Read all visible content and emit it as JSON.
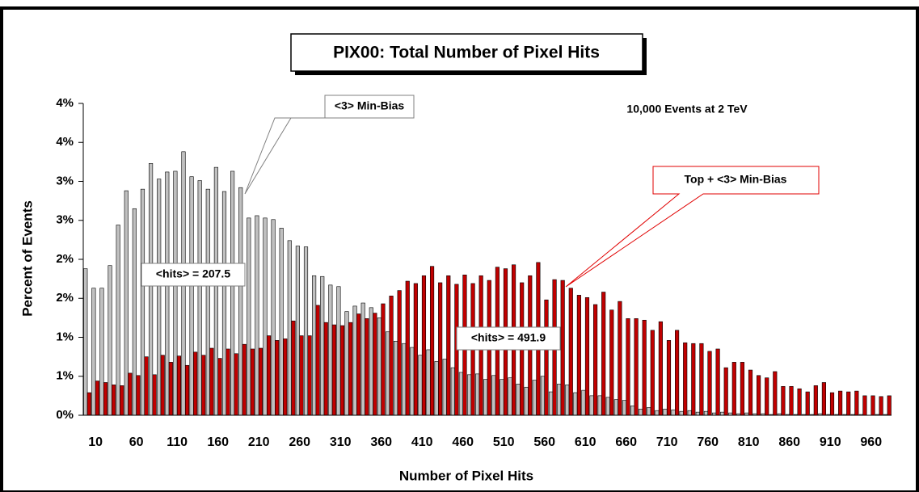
{
  "chart_data": {
    "type": "bar",
    "title": "PIX00: Total Number of Pixel Hits",
    "xlabel": "Number of Pixel Hits",
    "ylabel": "Percent of Events",
    "annotations": [
      "<3> Min-Bias",
      "10,000 Events at 2 TeV",
      "Top + <3> Min-Bias",
      "<hits> = 207.5",
      "<hits> = 491.9"
    ],
    "categories": [
      "10",
      null,
      null,
      null,
      null,
      "60",
      null,
      null,
      null,
      null,
      "110",
      null,
      null,
      null,
      null,
      "160",
      null,
      null,
      null,
      null,
      "210",
      null,
      null,
      null,
      null,
      "260",
      null,
      null,
      null,
      null,
      "310",
      null,
      null,
      null,
      null,
      "360",
      null,
      null,
      null,
      null,
      "410",
      null,
      null,
      null,
      null,
      "460",
      null,
      null,
      null,
      null,
      "510",
      null,
      null,
      null,
      null,
      "560",
      null,
      null,
      null,
      null,
      "610",
      null,
      null,
      null,
      null,
      "660",
      null,
      null,
      null,
      null,
      "710",
      null,
      null,
      null,
      null,
      "760",
      null,
      null,
      null,
      null,
      "810",
      null,
      null,
      null,
      null,
      "860",
      null,
      null,
      null,
      null,
      "910",
      null,
      null,
      null,
      null,
      "960",
      null,
      null,
      null
    ],
    "series": [
      {
        "color": "#c0c0c0",
        "values": [
          1.88,
          1.63,
          1.63,
          1.92,
          2.44,
          2.88,
          2.65,
          2.9,
          3.23,
          3.03,
          3.12,
          3.13,
          3.38,
          3.06,
          3.01,
          2.9,
          3.18,
          2.87,
          3.13,
          2.92,
          2.53,
          2.56,
          2.53,
          2.51,
          2.4,
          2.24,
          2.17,
          2.16,
          1.79,
          1.78,
          1.67,
          1.65,
          1.33,
          1.4,
          1.44,
          1.38,
          1.25,
          1.07,
          0.95,
          0.92,
          0.87,
          0.77,
          0.84,
          0.69,
          0.72,
          0.61,
          0.55,
          0.52,
          0.53,
          0.46,
          0.51,
          0.46,
          0.48,
          0.4,
          0.36,
          0.45,
          0.5,
          0.3,
          0.4,
          0.39,
          0.29,
          0.32,
          0.25,
          0.25,
          0.23,
          0.2,
          0.19,
          0.12,
          0.08,
          0.1,
          0.06,
          0.08,
          0.07,
          0.05,
          0.06,
          0.04,
          0.05,
          0.03,
          0.04,
          0.03,
          0.02,
          0.03,
          0.02,
          0.02,
          0.01,
          0.02,
          0.01,
          0.01,
          0.01,
          0.01,
          0.02,
          0.01,
          0.01,
          0.01,
          0.01,
          0.01,
          0,
          0.01,
          0.01
        ]
      },
      {
        "color": "#c00000",
        "values": [
          0.29,
          0.44,
          0.42,
          0.39,
          0.38,
          0.54,
          0.51,
          0.75,
          0.52,
          0.77,
          0.68,
          0.76,
          0.64,
          0.81,
          0.77,
          0.86,
          0.73,
          0.85,
          0.79,
          0.91,
          0.85,
          0.86,
          1.02,
          0.96,
          0.98,
          1.21,
          1.02,
          1.02,
          1.41,
          1.19,
          1.16,
          1.15,
          1.19,
          1.3,
          1.24,
          1.31,
          1.43,
          1.53,
          1.6,
          1.72,
          1.69,
          1.79,
          1.91,
          1.7,
          1.79,
          1.68,
          1.8,
          1.69,
          1.79,
          1.73,
          1.9,
          1.88,
          1.93,
          1.7,
          1.79,
          1.96,
          1.48,
          1.74,
          1.73,
          1.63,
          1.54,
          1.51,
          1.42,
          1.58,
          1.35,
          1.46,
          1.24,
          1.24,
          1.22,
          1.09,
          1.2,
          0.96,
          1.09,
          0.93,
          0.92,
          0.92,
          0.82,
          0.85,
          0.61,
          0.68,
          0.68,
          0.58,
          0.51,
          0.48,
          0.56,
          0.37,
          0.37,
          0.34,
          0.3,
          0.38,
          0.42,
          0.29,
          0.31,
          0.3,
          0.31,
          0.25,
          0.25,
          0.24,
          0.25
        ]
      }
    ],
    "ylim": [
      0,
      4
    ],
    "yticks": [
      {
        "value": 0,
        "label": "0%"
      },
      {
        "value": 0.5,
        "label": "1%"
      },
      {
        "value": 1,
        "label": "1%"
      },
      {
        "value": 1.5,
        "label": "2%"
      },
      {
        "value": 2,
        "label": "2%"
      },
      {
        "value": 2.5,
        "label": "3%"
      },
      {
        "value": 3,
        "label": "3%"
      },
      {
        "value": 3.5,
        "label": "4%"
      },
      {
        "value": 4,
        "label": "4%"
      }
    ]
  }
}
